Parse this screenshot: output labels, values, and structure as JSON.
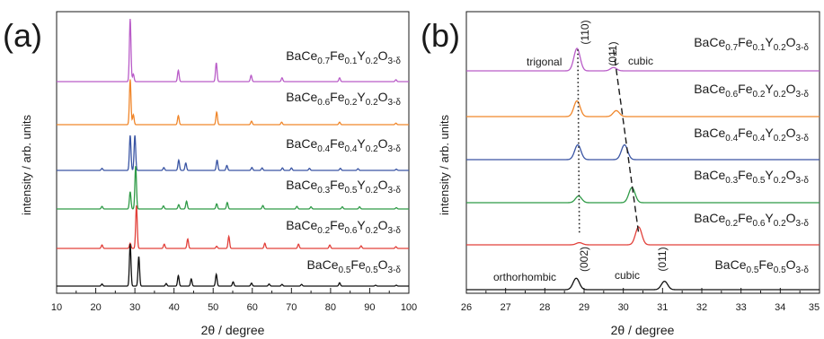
{
  "figure": {
    "panels": [
      {
        "label": "(a)",
        "xlabel": "2θ / degree",
        "ylabel": "intensity / arb. units",
        "xticks": [
          "10",
          "20",
          "30",
          "40",
          "50",
          "60",
          "70",
          "80",
          "90",
          "100"
        ]
      },
      {
        "label": "(b)",
        "xlabel": "2θ / degree",
        "ylabel": "intensity / arb. units",
        "xticks": [
          "26",
          "27",
          "28",
          "29",
          "30",
          "31",
          "32",
          "33",
          "34",
          "35"
        ],
        "annotations": {
          "trigonal": "trigonal",
          "cubic_top": "cubic",
          "orthorhombic": "orthorhombic",
          "cubic_bottom": "cubic",
          "hkl_110": "(110)",
          "hkl_011_top": "(011)",
          "hkl_002": "(002)",
          "hkl_011_bottom": "(011)"
        }
      }
    ]
  },
  "chart_data": [
    {
      "type": "line",
      "title": "",
      "xlabel": "2θ / degree",
      "ylabel": "intensity / arb. units",
      "xlim": [
        10,
        100
      ],
      "grid": false,
      "series": [
        {
          "name": "BaCe0.7Fe0.1Y0.2O3-δ",
          "label_parts": [
            "BaCe",
            "0.7",
            "Fe",
            "0.1",
            "Y",
            "0.2",
            "O",
            "3-δ"
          ],
          "color": "#b95cc8",
          "peaks": [
            [
              28.8,
              1.0
            ],
            [
              29.6,
              0.12
            ],
            [
              41.1,
              0.18
            ],
            [
              50.8,
              0.3
            ],
            [
              59.7,
              0.1
            ],
            [
              67.6,
              0.06
            ],
            [
              82.3,
              0.06
            ],
            [
              96.7,
              0.03
            ]
          ]
        },
        {
          "name": "BaCe0.6Fe0.2Y0.2O3-δ",
          "label_parts": [
            "BaCe",
            "0.6",
            "Fe",
            "0.2",
            "Y",
            "0.2",
            "O",
            "3-δ"
          ],
          "color": "#f0862a",
          "peaks": [
            [
              28.8,
              0.9
            ],
            [
              29.6,
              0.2
            ],
            [
              41.1,
              0.18
            ],
            [
              50.9,
              0.25
            ],
            [
              59.8,
              0.07
            ],
            [
              67.5,
              0.05
            ],
            [
              82.3,
              0.05
            ],
            [
              96.7,
              0.03
            ]
          ]
        },
        {
          "name": "BaCe0.4Fe0.4Y0.2O3-δ",
          "label_parts": [
            "BaCe",
            "0.4",
            "Fe",
            "0.4",
            "Y",
            "0.2",
            "O",
            "3-δ"
          ],
          "color": "#3a55a4",
          "peaks": [
            [
              21.6,
              0.05
            ],
            [
              28.8,
              0.85
            ],
            [
              30.0,
              0.85
            ],
            [
              37.4,
              0.07
            ],
            [
              41.2,
              0.25
            ],
            [
              43.0,
              0.18
            ],
            [
              51.0,
              0.25
            ],
            [
              53.5,
              0.12
            ],
            [
              59.9,
              0.07
            ],
            [
              62.5,
              0.06
            ],
            [
              67.7,
              0.06
            ],
            [
              70.0,
              0.06
            ],
            [
              74.6,
              0.05
            ],
            [
              82.5,
              0.05
            ],
            [
              87.0,
              0.04
            ],
            [
              96.8,
              0.03
            ]
          ]
        },
        {
          "name": "BaCe0.3Fe0.5Y0.2O3-δ",
          "label_parts": [
            "BaCe",
            "0.3",
            "Fe",
            "0.5",
            "Y",
            "0.2",
            "O",
            "3-δ"
          ],
          "color": "#2e9a46",
          "peaks": [
            [
              21.6,
              0.06
            ],
            [
              28.8,
              0.4
            ],
            [
              30.2,
              1.0
            ],
            [
              37.3,
              0.07
            ],
            [
              41.2,
              0.1
            ],
            [
              43.2,
              0.18
            ],
            [
              50.9,
              0.12
            ],
            [
              53.6,
              0.15
            ],
            [
              62.7,
              0.08
            ],
            [
              71.4,
              0.06
            ],
            [
              75.0,
              0.05
            ],
            [
              83.0,
              0.05
            ],
            [
              87.4,
              0.05
            ],
            [
              96.8,
              0.03
            ]
          ]
        },
        {
          "name": "BaCe0.2Fe0.6Y0.2O3-δ",
          "label_parts": [
            "BaCe",
            "0.2",
            "Fe",
            "0.6",
            "Y",
            "0.2",
            "O",
            "3-δ"
          ],
          "color": "#e2403a",
          "peaks": [
            [
              21.6,
              0.08
            ],
            [
              28.8,
              0.12
            ],
            [
              30.4,
              1.0
            ],
            [
              37.5,
              0.1
            ],
            [
              43.5,
              0.22
            ],
            [
              50.9,
              0.05
            ],
            [
              54.0,
              0.28
            ],
            [
              63.2,
              0.12
            ],
            [
              71.8,
              0.1
            ],
            [
              79.8,
              0.08
            ],
            [
              87.8,
              0.06
            ],
            [
              96.7,
              0.04
            ]
          ]
        },
        {
          "name": "BaCe0.5Fe0.5O3-δ",
          "label_parts": [
            "BaCe",
            "0.5",
            "Fe",
            "0.5",
            "O",
            "3-δ"
          ],
          "color": "#111111",
          "peaks": [
            [
              21.6,
              0.05
            ],
            [
              28.8,
              1.0
            ],
            [
              31.0,
              0.7
            ],
            [
              38.0,
              0.06
            ],
            [
              41.1,
              0.25
            ],
            [
              44.4,
              0.17
            ],
            [
              50.8,
              0.28
            ],
            [
              55.1,
              0.1
            ],
            [
              59.8,
              0.07
            ],
            [
              64.3,
              0.05
            ],
            [
              67.6,
              0.04
            ],
            [
              72.6,
              0.04
            ],
            [
              82.3,
              0.08
            ],
            [
              91.5,
              0.02
            ],
            [
              96.8,
              0.02
            ]
          ]
        }
      ]
    },
    {
      "type": "line",
      "title": "",
      "xlabel": "2θ / degree",
      "ylabel": "intensity / arb. units",
      "xlim": [
        26,
        35
      ],
      "grid": false,
      "series": [
        {
          "name": "BaCe0.7Fe0.1Y0.2O3-δ",
          "label_parts": [
            "BaCe",
            "0.7",
            "Fe",
            "0.1",
            "Y",
            "0.2",
            "O",
            "3-δ"
          ],
          "color": "#b95cc8",
          "peaks": [
            [
              28.82,
              1.0
            ],
            [
              29.75,
              0.15
            ]
          ]
        },
        {
          "name": "BaCe0.6Fe0.2Y0.2O3-δ",
          "label_parts": [
            "BaCe",
            "0.6",
            "Fe",
            "0.2",
            "Y",
            "0.2",
            "O",
            "3-δ"
          ],
          "color": "#f0862a",
          "peaks": [
            [
              28.82,
              0.8
            ],
            [
              29.82,
              0.3
            ]
          ]
        },
        {
          "name": "BaCe0.4Fe0.4Y0.2O3-δ",
          "label_parts": [
            "BaCe",
            "0.4",
            "Fe",
            "0.4",
            "Y",
            "0.2",
            "O",
            "3-δ"
          ],
          "color": "#3a55a4",
          "peaks": [
            [
              28.84,
              0.75
            ],
            [
              30.03,
              0.75
            ]
          ]
        },
        {
          "name": "BaCe0.3Fe0.5Y0.2O3-δ",
          "label_parts": [
            "BaCe",
            "0.3",
            "Fe",
            "0.5",
            "Y",
            "0.2",
            "O",
            "3-δ"
          ],
          "color": "#2e9a46",
          "peaks": [
            [
              28.86,
              0.35
            ],
            [
              30.22,
              0.8
            ]
          ]
        },
        {
          "name": "BaCe0.2Fe0.6Y0.2O3-δ",
          "label_parts": [
            "BaCe",
            "0.2",
            "Fe",
            "0.6",
            "Y",
            "0.2",
            "O",
            "3-δ"
          ],
          "color": "#e2403a",
          "peaks": [
            [
              28.88,
              0.12
            ],
            [
              30.39,
              1.0
            ]
          ]
        },
        {
          "name": "BaCe0.5Fe0.5O3-δ",
          "label_parts": [
            "BaCe",
            "0.5",
            "Fe",
            "0.5",
            "O",
            "3-δ"
          ],
          "color": "#111111",
          "peaks": [
            [
              28.8,
              0.75
            ],
            [
              31.05,
              0.55
            ]
          ]
        }
      ],
      "guide_lines": [
        {
          "style": "dotted",
          "points": [
            [
              28.84,
              5.0
            ],
            [
              28.88,
              1.0
            ]
          ]
        },
        {
          "style": "dashed",
          "points": [
            [
              29.75,
              5.0
            ],
            [
              30.39,
              1.0
            ]
          ]
        }
      ]
    }
  ]
}
